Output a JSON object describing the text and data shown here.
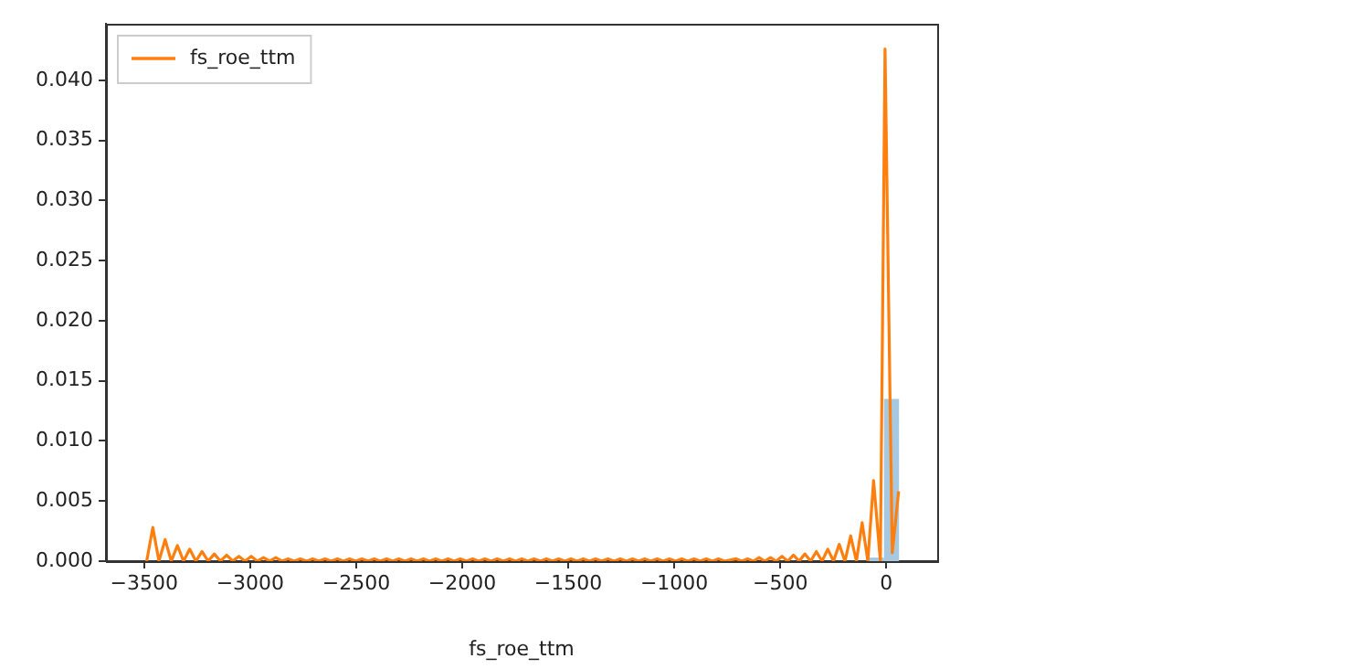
{
  "chart_data": {
    "type": "line",
    "xlabel": "fs_roe_ttm",
    "legend": "top left",
    "grid": false,
    "marker": "none",
    "xlim": [
      -3680,
      240
    ],
    "ylim": [
      0,
      0.0447
    ],
    "xticks": [
      {
        "value": -3500,
        "label": "−3500"
      },
      {
        "value": -3000,
        "label": "−3000"
      },
      {
        "value": -2500,
        "label": "−2500"
      },
      {
        "value": -2000,
        "label": "−2000"
      },
      {
        "value": -1500,
        "label": "−1500"
      },
      {
        "value": -1000,
        "label": "−1000"
      },
      {
        "value": -500,
        "label": "−500"
      },
      0
    ],
    "yticks": [
      {
        "value": 0,
        "label": "0.000"
      },
      {
        "value": 0.005,
        "label": "0.005"
      },
      {
        "value": 0.01,
        "label": "0.010"
      },
      {
        "value": 0.015,
        "label": "0.015"
      },
      {
        "value": 0.02,
        "label": "0.020"
      },
      {
        "value": 0.025,
        "label": "0.025"
      },
      {
        "value": 0.03,
        "label": "0.030"
      },
      {
        "value": 0.035,
        "label": "0.035"
      },
      {
        "value": 0.04,
        "label": "0.040"
      }
    ],
    "series": [
      {
        "type": "histogram",
        "color": "#a6c8e0",
        "bins": [
          -82,
          -11,
          60
        ],
        "values": [
          0.0003,
          0.0135
        ]
      },
      {
        "name": "fs_roe_ttm",
        "color": "#ff7f0e",
        "line_style": "solid",
        "x": [
          -3488,
          -3459,
          -3430,
          -3401,
          -3372,
          -3343,
          -3314,
          -3285,
          -3256,
          -3227,
          -3198,
          -3169,
          -3140,
          -3111,
          -3082,
          -3053,
          -3024,
          -2995,
          -2966,
          -2937,
          -2908,
          -2879,
          -2850,
          -2821,
          -2792,
          -2763,
          -2734,
          -2705,
          -2676,
          -2647,
          -2618,
          -2589,
          -2560,
          -2531,
          -2502,
          -2473,
          -2444,
          -2415,
          -2386,
          -2357,
          -2328,
          -2299,
          -2270,
          -2241,
          -2212,
          -2183,
          -2154,
          -2125,
          -2096,
          -2067,
          -2038,
          -2009,
          -1980,
          -1951,
          -1922,
          -1893,
          -1864,
          -1835,
          -1806,
          -1777,
          -1748,
          -1719,
          -1690,
          -1661,
          -1632,
          -1603,
          -1574,
          -1545,
          -1516,
          -1487,
          -1458,
          -1429,
          -1400,
          -1371,
          -1342,
          -1313,
          -1284,
          -1255,
          -1226,
          -1197,
          -1168,
          -1139,
          -1110,
          -1081,
          -1052,
          -1023,
          -994,
          -965,
          -936,
          -907,
          -878,
          -849,
          -820,
          -791,
          -762,
          -708,
          -681,
          -654,
          -627,
          -600,
          -573,
          -546,
          -519,
          -492,
          -465,
          -438,
          -411,
          -384,
          -357,
          -330,
          -303,
          -276,
          -249,
          -222,
          -195,
          -168,
          -141,
          -114,
          -87,
          -60,
          -28,
          -6,
          28,
          58
        ],
        "values": [
          0,
          0.0028,
          0,
          0.0018,
          0,
          0.0013,
          0,
          0.001,
          0,
          0.0008,
          0,
          0.0006,
          0,
          0.0005,
          0,
          0.0004,
          0,
          0.0004,
          0,
          0.0003,
          0,
          0.0003,
          0,
          0.0002,
          0,
          0.0002,
          0,
          0.0002,
          0,
          0.0002,
          0,
          0.0002,
          0,
          0.0002,
          0,
          0.0002,
          0,
          0.0002,
          0,
          0.0002,
          0,
          0.0002,
          0,
          0.0002,
          0,
          0.0002,
          0,
          0.0002,
          0,
          0.0002,
          0,
          0.0002,
          0,
          0.0002,
          0,
          0.0002,
          0,
          0.0002,
          0,
          0.0002,
          0,
          0.0002,
          0,
          0.0002,
          0,
          0.0002,
          0,
          0.0002,
          0,
          0.0002,
          0,
          0.0002,
          0,
          0.0002,
          0,
          0.0002,
          0,
          0.0002,
          0,
          0.0002,
          0,
          0.0002,
          0,
          0.0002,
          0,
          0.0002,
          0,
          0.0002,
          0,
          0.0002,
          0,
          0.0002,
          0,
          0.0002,
          0,
          0.0002,
          0,
          0.0002,
          0,
          0.0003,
          0,
          0.0003,
          0,
          0.0004,
          0,
          0.0005,
          0,
          0.0006,
          0,
          0.0008,
          0,
          0.001,
          0,
          0.0014,
          0,
          0.0021,
          0,
          0.0032,
          0,
          0.0067,
          0,
          0.0426,
          0.0007,
          0.0058
        ]
      }
    ]
  }
}
